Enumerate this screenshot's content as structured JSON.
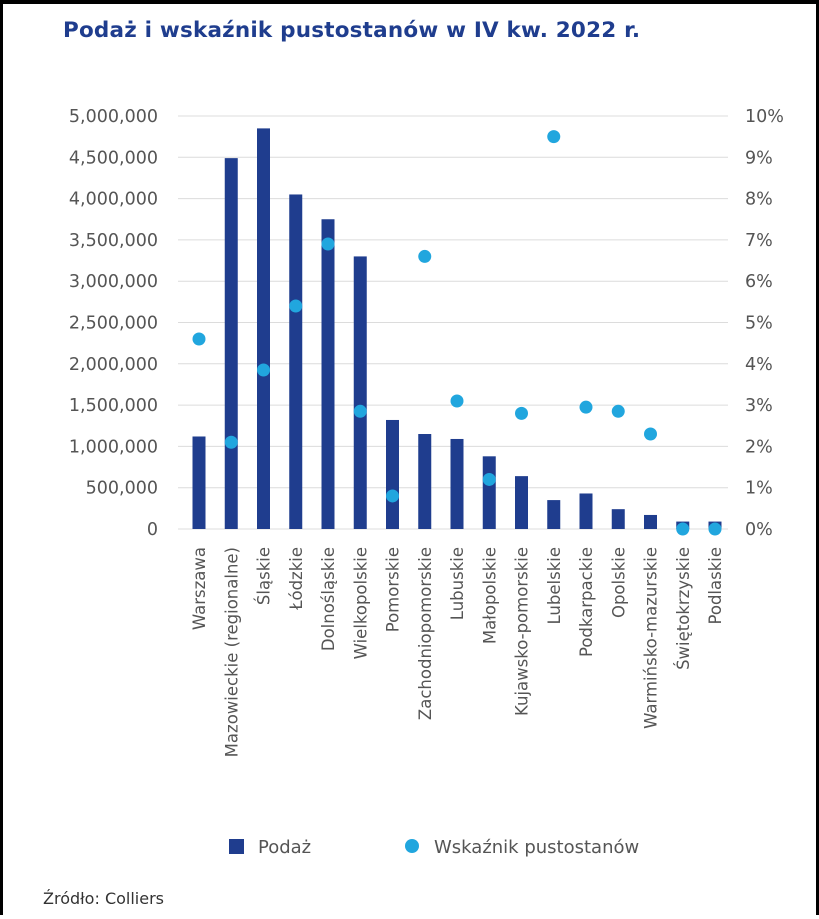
{
  "title": "Podaż i wskaźnik pustostanów w IV kw. 2022 r.",
  "source": "Źródło: Colliers",
  "colors": {
    "title": "#1f3d8e",
    "bars": "#1f3d8e",
    "dots": "#21a6de",
    "grid": "#dcdcdc",
    "text": "#555555"
  },
  "legend": {
    "bars": "Podaż",
    "dots": "Wskaźnik pustostanów"
  },
  "chart_data": {
    "type": "bar",
    "title": "Podaż i wskaźnik pustostanów w IV kw. 2022 r.",
    "categories": [
      "Warszawa",
      "Mazowieckie (regionalne)",
      "Śląskie",
      "Łódzkie",
      "Dolnośląskie",
      "Wielkopolskie",
      "Pomorskie",
      "Zachodniopomorskie",
      "Lubuskie",
      "Małopolskie",
      "Kujawsko-pomorskie",
      "Lubelskie",
      "Podkarpackie",
      "Opolskie",
      "Warmińsko-mazurskie",
      "Świętokrzyskie",
      "Podlaskie"
    ],
    "series": [
      {
        "name": "Podaż",
        "type": "bar",
        "axis": "left",
        "values": [
          1120000,
          4490000,
          4850000,
          4050000,
          3750000,
          3300000,
          1320000,
          1150000,
          1090000,
          880000,
          640000,
          350000,
          430000,
          240000,
          170000,
          90000,
          90000
        ]
      },
      {
        "name": "Wskaźnik pustostanów",
        "type": "scatter",
        "axis": "right",
        "unit": "%",
        "values": [
          4.6,
          2.1,
          3.85,
          5.4,
          6.9,
          2.85,
          0.8,
          6.6,
          3.1,
          1.2,
          2.8,
          9.5,
          2.95,
          2.85,
          2.3,
          0.0,
          0.0
        ]
      }
    ],
    "ylim_left": [
      0,
      5000000
    ],
    "ylim_right": [
      0,
      10
    ],
    "yticks_left": [
      "0",
      "500,000",
      "1,000,000",
      "1,500,000",
      "2,000,000",
      "2,500,000",
      "3,000,000",
      "3,500,000",
      "4,000,000",
      "4,500,000",
      "5,000,000"
    ],
    "yticks_right": [
      "0%",
      "1%",
      "2%",
      "3%",
      "4%",
      "5%",
      "6%",
      "7%",
      "8%",
      "9%",
      "10%"
    ],
    "grid": true,
    "legend_position": "bottom"
  }
}
